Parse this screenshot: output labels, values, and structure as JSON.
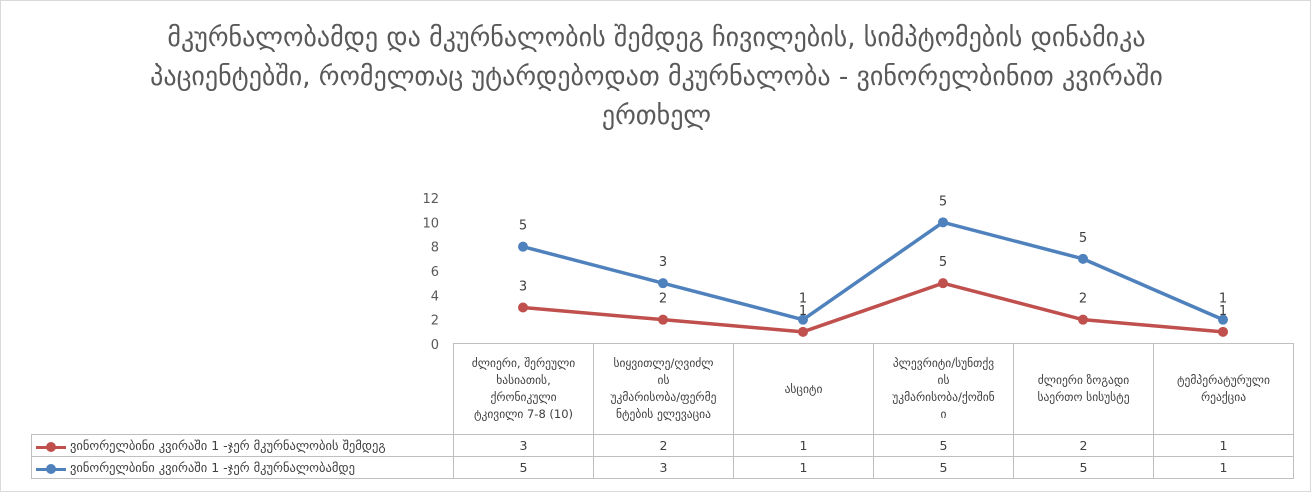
{
  "chart_data": {
    "type": "line",
    "title": "მკურნალობამდე და მკურნალობის შემდეგ ჩივილების, სიმპტომების დინამიკა პაციენტებში, რომელთაც უტარდებოდათ მკურნალობა - ვინორელბინით კვირაში ერთხელ",
    "categories": [
      "ძლიერი, შერეული ხასიათის, ქრონიკული ტკივილი 7-8 (10)",
      "სიყვითლე/ღვიძლის უკმარისობა/ფერმენტების ელევაცია",
      "ასციტი",
      "პლევრიტი/სუნთქვის უკმარისობა/ქოშინი",
      "ძლიერი ზოგადი საერთო სისუსტე",
      "ტემპერატურული რეაქცია"
    ],
    "category_display": [
      "ძლიერი, შერეული\nხასიათის,\nქრონიკული\nტკივილი 7-8 (10)",
      "სიყვითლე/ღვიძლ\nის\nუკმარისობა/ფერმე\nნტების ელევაცია",
      "ასციტი",
      "პლევრიტი/სუნთქვ\nის\nუკმარისობა/ქოშინ\nი",
      "ძლიერი ზოგადი\nსაერთო სისუსტე",
      "ტემპერატურული\nრეაქცია"
    ],
    "series": [
      {
        "name": "ვინორელბინი კვირაში 1 -ჯერ მკურნალობის შემდეგ",
        "values": [
          3,
          2,
          1,
          5,
          2,
          1
        ],
        "color": "#c0504d"
      },
      {
        "name": "ვინორელბინი კვირაში 1 -ჯერ მკურნალობამდე",
        "values": [
          5,
          3,
          1,
          5,
          5,
          1
        ],
        "color": "#4f81bd"
      }
    ],
    "stacked": true,
    "ylim": [
      0,
      12
    ],
    "yticks": [
      0,
      2,
      4,
      6,
      8,
      10,
      12
    ],
    "xlabel": "",
    "ylabel": "",
    "grid": false,
    "legend": "data-table",
    "data_labels": true
  }
}
